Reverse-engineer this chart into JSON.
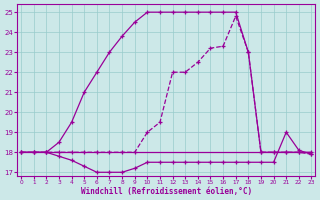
{
  "bg_color": "#cce8e8",
  "grid_color": "#99cccc",
  "line_color": "#990099",
  "xlim": [
    -0.3,
    23.3
  ],
  "ylim": [
    16.8,
    25.4
  ],
  "ytick_vals": [
    17,
    18,
    19,
    20,
    21,
    22,
    23,
    24,
    25
  ],
  "xtick_vals": [
    0,
    1,
    2,
    3,
    4,
    5,
    6,
    7,
    8,
    9,
    10,
    11,
    12,
    13,
    14,
    15,
    16,
    17,
    18,
    19,
    20,
    21,
    22,
    23
  ],
  "xlabel": "Windchill (Refroidissement éolien,°C)",
  "s1_x": [
    0,
    1,
    2,
    3,
    4,
    5,
    6,
    7,
    8,
    9,
    10,
    11,
    12,
    13,
    14,
    15,
    16,
    17,
    18,
    19,
    20,
    21,
    22,
    23
  ],
  "s1_y": [
    18,
    18,
    18,
    18,
    18,
    18,
    18,
    18,
    18,
    18,
    19,
    19.5,
    22.0,
    22.0,
    22.5,
    23.2,
    23.3,
    24.8,
    23.0,
    18,
    18,
    18,
    18,
    17.9
  ],
  "s2_x": [
    0,
    1,
    2,
    3,
    4,
    5,
    6,
    7,
    8,
    9,
    10,
    11,
    12,
    13,
    14,
    15,
    16,
    17,
    18,
    19,
    20,
    21,
    22,
    23
  ],
  "s2_y": [
    18,
    18,
    18,
    18,
    18,
    18,
    18,
    18,
    18,
    18,
    18,
    18,
    18,
    18,
    18,
    18,
    18,
    18,
    18,
    18,
    18,
    18,
    18,
    18
  ],
  "s3_x": [
    0,
    1,
    2,
    3,
    4,
    5,
    6,
    7,
    8,
    9,
    10,
    11,
    12,
    13,
    14,
    15,
    16,
    17,
    18,
    19,
    20,
    21,
    22,
    23
  ],
  "s3_y": [
    18,
    18,
    18,
    18.5,
    19.5,
    21.0,
    22.0,
    23.0,
    23.8,
    24.5,
    25.0,
    25.0,
    25.0,
    25.0,
    25.0,
    25.0,
    25.0,
    25.0,
    23.0,
    18,
    18,
    18,
    18,
    18
  ],
  "s4_x": [
    0,
    1,
    2,
    3,
    4,
    5,
    6,
    7,
    8,
    9,
    10,
    11,
    12,
    13,
    14,
    15,
    16,
    17,
    18,
    19,
    20,
    21,
    22,
    23
  ],
  "s4_y": [
    18,
    18,
    18,
    17.8,
    17.6,
    17.3,
    17.0,
    17.0,
    17.0,
    17.2,
    17.5,
    17.5,
    17.5,
    17.5,
    17.5,
    17.5,
    17.5,
    17.5,
    17.5,
    17.5,
    17.5,
    19.0,
    18.1,
    17.9
  ]
}
